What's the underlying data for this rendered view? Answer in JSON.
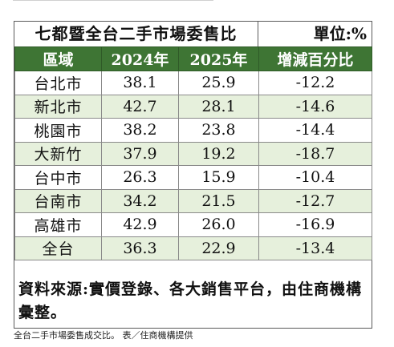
{
  "title": "七都暨全台二手市場委售比",
  "unit": "單位:%",
  "headers": [
    "區域",
    "2024年",
    "2025年",
    "增減百分比"
  ],
  "rows": [
    {
      "region": "台北市",
      "y2024": "38.1",
      "y2025": "25.9",
      "change": "-12.2"
    },
    {
      "region": "新北市",
      "y2024": "42.7",
      "y2025": "28.1",
      "change": "-14.6"
    },
    {
      "region": "桃園市",
      "y2024": "38.2",
      "y2025": "23.8",
      "change": "-14.4"
    },
    {
      "region": "大新竹",
      "y2024": "37.9",
      "y2025": "19.2",
      "change": "-18.7"
    },
    {
      "region": "台中市",
      "y2024": "26.3",
      "y2025": "15.9",
      "change": "-10.4"
    },
    {
      "region": "台南市",
      "y2024": "34.2",
      "y2025": "21.5",
      "change": "-12.7"
    },
    {
      "region": "高雄市",
      "y2024": "42.9",
      "y2025": "26.0",
      "change": "-16.9"
    },
    {
      "region": "全台",
      "y2024": "36.3",
      "y2025": "22.9",
      "change": "-13.4"
    }
  ],
  "source": "資料來源:實價登錄、各大銷售平台，由住商機構彙整。",
  "caption": "全台二手市場委售成交比。 表／住商機構提供",
  "colors": {
    "header_bg": "#3e7534",
    "alt_row_bg": "#e6f0dc",
    "border": "#5a5a5a"
  }
}
